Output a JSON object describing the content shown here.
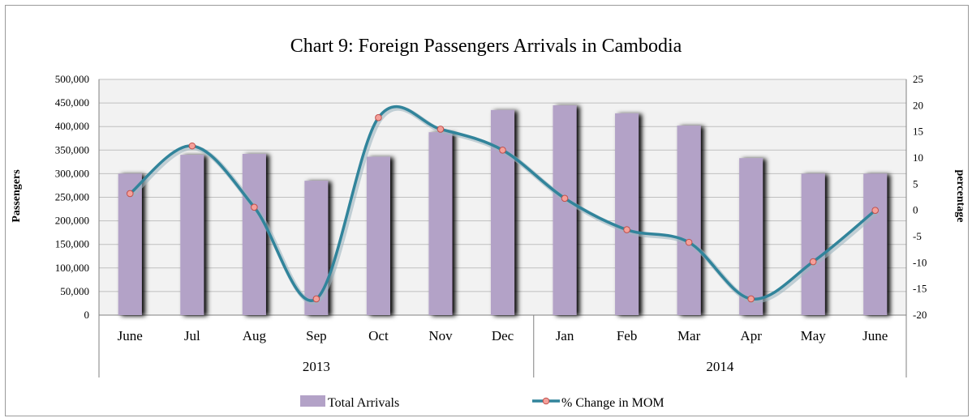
{
  "chart_data": {
    "type": "bar+line",
    "title": "Chart 9: Foreign Passengers Arrivals in Cambodia",
    "ylabel_left": "Passengers",
    "ylabel_right": "percentage",
    "categories": [
      "June",
      "Jul",
      "Aug",
      "Sep",
      "Oct",
      "Nov",
      "Dec",
      "Jan",
      "Feb",
      "Mar",
      "Apr",
      "May",
      "June"
    ],
    "groups": [
      {
        "label": "2013",
        "from": 0,
        "to": 6
      },
      {
        "label": "2014",
        "from": 7,
        "to": 12
      }
    ],
    "ylim_left": [
      0,
      500000
    ],
    "yticks_left": [
      "0",
      "50,000",
      "100,000",
      "150,000",
      "200,000",
      "250,000",
      "300,000",
      "350,000",
      "400,000",
      "450,000",
      "500,000"
    ],
    "ylim_right": [
      -20,
      25
    ],
    "yticks_right": [
      "-20",
      "-15",
      "-10",
      "-5",
      "0",
      "5",
      "10",
      "15",
      "20",
      "25"
    ],
    "grid": true,
    "legend_position": "bottom",
    "series": [
      {
        "name": "Total Arrivals",
        "kind": "bar",
        "color": "#b3a2c7",
        "values": [
          300000,
          340000,
          342000,
          285000,
          336000,
          388000,
          435000,
          445000,
          428000,
          402000,
          333000,
          300000,
          300000
        ]
      },
      {
        "name": "% Change in MOM",
        "kind": "line",
        "color": "#31849b",
        "marker_color": "#f4a09a",
        "values": [
          3.2,
          12.3,
          0.6,
          -16.9,
          17.7,
          15.5,
          11.5,
          2.3,
          -3.7,
          -6.1,
          -16.9,
          -9.8,
          0
        ]
      }
    ]
  }
}
